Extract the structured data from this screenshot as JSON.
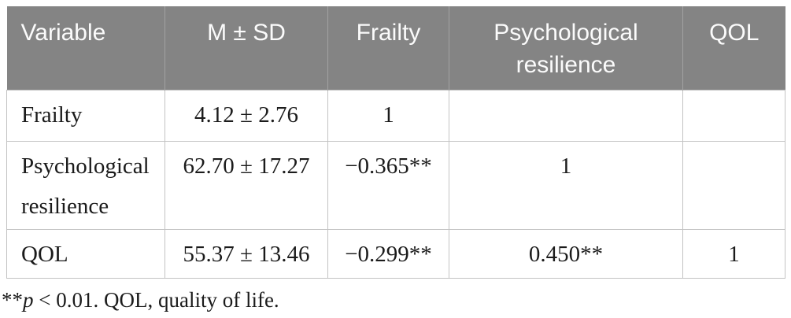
{
  "table": {
    "columns": [
      "Variable",
      "M ± SD",
      "Frailty",
      "Psychological resilience",
      "QOL"
    ],
    "rows": [
      [
        "Frailty",
        "4.12 ± 2.76",
        "1",
        "",
        ""
      ],
      [
        "Psychological resilience",
        "62.70 ± 17.27",
        "−0.365**",
        "1",
        ""
      ],
      [
        "QOL",
        "55.37 ± 13.46",
        "−0.299**",
        "0.450**",
        "1"
      ]
    ]
  },
  "footnote": {
    "stars": "**",
    "p_symbol": "p",
    "rest": " < 0.01. QOL, quality of life."
  },
  "colors": {
    "header_bg": "#848484",
    "header_text": "#fbfbfb",
    "header_divider": "#a2a2a2",
    "body_border": "#c3c3c3",
    "body_text": "#1b1b1b"
  }
}
